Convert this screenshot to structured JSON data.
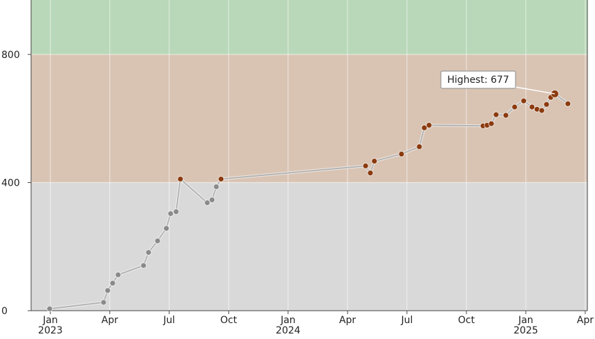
{
  "chart_data": {
    "type": "line",
    "x": [
      2022.997,
      2023.224,
      2023.241,
      2023.262,
      2023.285,
      2023.392,
      2023.413,
      2023.451,
      2023.488,
      2023.506,
      2023.529,
      2023.547,
      2023.66,
      2023.68,
      2023.698,
      2023.718,
      2024.326,
      2024.346,
      2024.363,
      2024.477,
      2024.552,
      2024.573,
      2024.593,
      2024.82,
      2024.837,
      2024.855,
      2024.875,
      2024.916,
      2024.953,
      2024.991,
      2025.026,
      2025.047,
      2025.067,
      2025.087,
      2025.105,
      2025.122,
      2025.177
    ],
    "values": [
      6,
      26,
      63,
      86,
      112,
      141,
      182,
      218,
      257,
      303,
      309,
      411,
      337,
      346,
      387,
      411,
      452,
      430,
      467,
      489,
      512,
      571,
      579,
      577,
      579,
      584,
      612,
      610,
      636,
      655,
      636,
      629,
      625,
      644,
      666,
      677,
      646
    ],
    "line_color": "#b3b3b3",
    "xlim": [
      2022.919,
      2025.259
    ],
    "ylim": [
      0,
      970
    ],
    "xticks": [
      {
        "value": 2023.0,
        "label": "Jan\n2023"
      },
      {
        "value": 2023.25,
        "label": "Apr"
      },
      {
        "value": 2023.5,
        "label": "Jul"
      },
      {
        "value": 2023.75,
        "label": "Oct"
      },
      {
        "value": 2024.0,
        "label": "Jan\n2024"
      },
      {
        "value": 2024.25,
        "label": "Apr"
      },
      {
        "value": 2024.5,
        "label": "Jul"
      },
      {
        "value": 2024.75,
        "label": "Oct"
      },
      {
        "value": 2025.0,
        "label": "Jan\n2025"
      },
      {
        "value": 2025.25,
        "label": "Apr"
      }
    ],
    "yticks": [
      0,
      400,
      800
    ],
    "grid": true,
    "bands": [
      {
        "from": 0,
        "to": 400,
        "color": "#d9d9d9",
        "point_color": "#8a8a8a"
      },
      {
        "from": 400,
        "to": 800,
        "color": "#d9c4b4",
        "point_color": "#8b3a0e"
      },
      {
        "from": 800,
        "to": 970,
        "color": "#b9d8b9",
        "point_color": "#8b3a0e"
      }
    ],
    "annotation": {
      "text": "Highest: 677",
      "index": 35
    }
  }
}
